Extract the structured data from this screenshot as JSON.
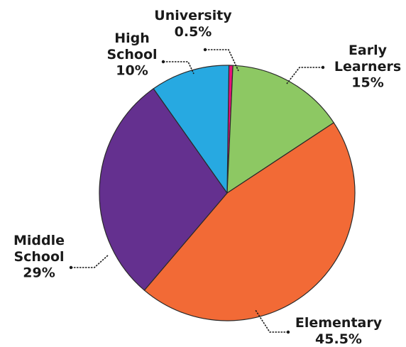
{
  "chart_data": {
    "type": "pie",
    "title": "",
    "slices": [
      {
        "name": "University",
        "value": 0.5,
        "label_lines": [
          "University",
          "0.5%"
        ],
        "color": "#e6127a"
      },
      {
        "name": "Early Learners",
        "value": 15,
        "label_lines": [
          "Early",
          "Learners",
          "15%"
        ],
        "color": "#8dc863"
      },
      {
        "name": "Elementary",
        "value": 45.5,
        "label_lines": [
          "Elementary",
          "45.5%"
        ],
        "color": "#f26a36"
      },
      {
        "name": "Middle School",
        "value": 29,
        "label_lines": [
          "Middle",
          "School",
          "29%"
        ],
        "color": "#64308f"
      },
      {
        "name": "High School",
        "value": 10,
        "label_lines": [
          "High",
          "School",
          "10%"
        ],
        "color": "#27a9e1"
      }
    ]
  }
}
